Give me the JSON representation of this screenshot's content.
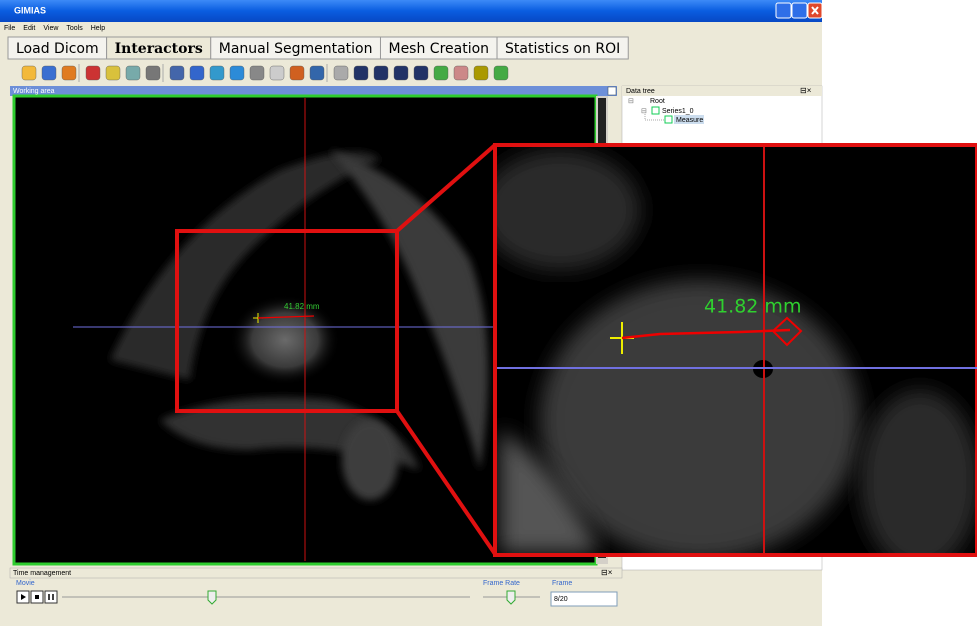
{
  "window": {
    "title": "GIMIAS"
  },
  "menu": [
    "File",
    "Edit",
    "View",
    "Tools",
    "Help"
  ],
  "tabs": [
    "Load Dicom",
    "Interactors",
    "Manual Segmentation",
    "Mesh Creation",
    "Statistics on ROI"
  ],
  "working_area": {
    "label": "Working area",
    "measurement_label": "41.82 mm"
  },
  "data_tree": {
    "title": "Data tree",
    "nodes": [
      "Root",
      "Series1_0",
      "Measure"
    ]
  },
  "time_management": {
    "title": "Time management",
    "movie_label": "Movie",
    "frame_rate_label": "Frame Rate",
    "frame_label": "Frame",
    "frame_value": "8/20"
  }
}
